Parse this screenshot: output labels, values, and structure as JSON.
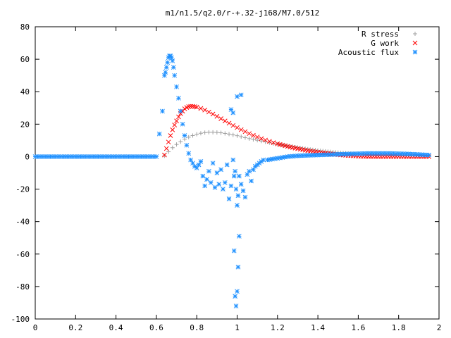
{
  "chart_data": {
    "type": "scatter",
    "title": "m1/n1.5/q2.0/r-+.32-j168/M7.0/512",
    "xlabel": "",
    "ylabel": "",
    "xlim": [
      0,
      2
    ],
    "ylim": [
      -100,
      80
    ],
    "x_ticks": [
      "0",
      "0.2",
      "0.4",
      "0.6",
      "0.8",
      "1",
      "1.2",
      "1.4",
      "1.6",
      "1.8",
      "2"
    ],
    "y_ticks": [
      "80",
      "60",
      "40",
      "20",
      "0",
      "-20",
      "-40",
      "-60",
      "-80",
      "-100"
    ],
    "grid": false,
    "legend_position": "top-right",
    "series": [
      {
        "name": "R stress",
        "marker": "plus",
        "color": "#a0a0a0",
        "x": [
          0.64,
          0.66,
          0.68,
          0.7,
          0.72,
          0.74,
          0.76,
          0.78,
          0.8,
          0.82,
          0.84,
          0.86,
          0.88,
          0.9,
          0.92,
          0.94,
          0.96,
          0.98,
          1.0,
          1.02,
          1.04,
          1.06,
          1.08,
          1.1,
          1.12,
          1.14,
          1.16,
          1.18,
          1.2,
          1.25,
          1.3,
          1.35,
          1.4,
          1.45,
          1.5,
          1.55,
          1.6,
          1.65,
          1.7,
          1.75,
          1.8,
          1.85,
          1.9,
          1.95
        ],
        "y": [
          0.5,
          3,
          5.5,
          7.5,
          9.2,
          10.8,
          12,
          13,
          13.8,
          14.4,
          14.8,
          15,
          15,
          14.9,
          14.7,
          14.3,
          13.9,
          13.4,
          12.9,
          12.3,
          11.7,
          11.1,
          10.6,
          10.1,
          9.6,
          9.1,
          8.6,
          8.1,
          7.7,
          6.6,
          5.6,
          4.6,
          3.8,
          3.1,
          2.5,
          2.0,
          1.6,
          1.3,
          1.1,
          1.0,
          0.9,
          0.8,
          0.7,
          0.6
        ]
      },
      {
        "name": "G work",
        "marker": "cross",
        "color": "#ff0000",
        "x": [
          0.64,
          0.65,
          0.66,
          0.67,
          0.68,
          0.69,
          0.7,
          0.71,
          0.72,
          0.73,
          0.74,
          0.75,
          0.76,
          0.77,
          0.78,
          0.79,
          0.8,
          0.82,
          0.84,
          0.86,
          0.88,
          0.9,
          0.92,
          0.94,
          0.96,
          0.98,
          1.0,
          1.02,
          1.04,
          1.06,
          1.08,
          1.1,
          1.12,
          1.14,
          1.16,
          1.18,
          1.2,
          1.25,
          1.3,
          1.35,
          1.4,
          1.45,
          1.5,
          1.55,
          1.6,
          1.65,
          1.7,
          1.75,
          1.8,
          1.85,
          1.9,
          1.95
        ],
        "y": [
          1,
          5,
          9,
          13,
          16.5,
          19.5,
          22,
          24.5,
          26.5,
          28,
          29.5,
          30.3,
          30.8,
          31,
          31,
          30.8,
          30.5,
          29.7,
          28.7,
          27.5,
          26.2,
          24.8,
          23.4,
          22,
          20.6,
          19.2,
          17.9,
          16.6,
          15.4,
          14.2,
          13.1,
          12.1,
          11.1,
          10.2,
          9.4,
          8.6,
          7.9,
          6.3,
          4.9,
          3.7,
          2.7,
          1.9,
          1.2,
          0.7,
          0.3,
          0.1,
          0,
          0,
          0,
          0,
          0,
          0
        ]
      },
      {
        "name": "Acoustic flux",
        "marker": "star",
        "color": "#1e90ff",
        "x": [
          0.0,
          0.05,
          0.1,
          0.15,
          0.2,
          0.25,
          0.3,
          0.35,
          0.4,
          0.45,
          0.5,
          0.55,
          0.6,
          0.63,
          0.64,
          0.645,
          0.65,
          0.655,
          0.66,
          0.665,
          0.67,
          0.675,
          0.68,
          0.685,
          0.69,
          0.7,
          0.71,
          0.72,
          0.73,
          0.74,
          0.75,
          0.76,
          0.77,
          0.78,
          0.79,
          0.8,
          0.81,
          0.82,
          0.83,
          0.84,
          0.85,
          0.86,
          0.87,
          0.88,
          0.89,
          0.9,
          0.91,
          0.92,
          0.93,
          0.94,
          0.95,
          0.96,
          0.97,
          0.98,
          0.985,
          0.99,
          0.995,
          1.0,
          1.005,
          1.01,
          1.02,
          1.03,
          1.04,
          1.05,
          1.06,
          1.07,
          1.08,
          1.09,
          1.1,
          1.11,
          1.12,
          1.13,
          1.15,
          1.2,
          1.25,
          1.3,
          1.35,
          1.4,
          1.45,
          1.5,
          1.55,
          1.6,
          1.65,
          1.7,
          1.75,
          1.8,
          1.85,
          1.9,
          1.95
        ],
        "y": [
          0,
          0,
          0,
          0,
          0,
          0,
          0,
          0,
          0,
          0,
          0,
          0,
          0,
          28,
          50,
          52,
          55,
          58,
          61,
          62,
          62,
          61,
          59,
          55,
          50,
          43,
          36,
          28,
          20,
          13,
          7,
          2,
          -2,
          -4,
          -6,
          -7,
          -5,
          -3,
          -12,
          -18,
          -14,
          -9,
          -16,
          -4,
          -19,
          -10,
          -17,
          -8,
          -20,
          -16,
          -5,
          -26,
          -18,
          -2,
          -12,
          -9,
          -20,
          -30,
          -24,
          -12,
          -17,
          -21,
          -25,
          -11,
          -9,
          -15,
          -8,
          -6,
          -5,
          -4,
          -3,
          -2,
          -2,
          -1,
          0,
          0.5,
          0.8,
          1,
          1.2,
          1.4,
          1.6,
          1.8,
          2,
          2,
          2,
          1.8,
          1.6,
          1.3,
          1
        ],
        "outliers_x": [
          0.985,
          0.99,
          0.995,
          1.0,
          1.005,
          1.01,
          0.98,
          1.0,
          1.02,
          0.97
        ],
        "outliers_y": [
          -58,
          -86,
          -92,
          -83,
          -68,
          -49,
          27,
          37,
          38,
          29
        ]
      }
    ]
  }
}
